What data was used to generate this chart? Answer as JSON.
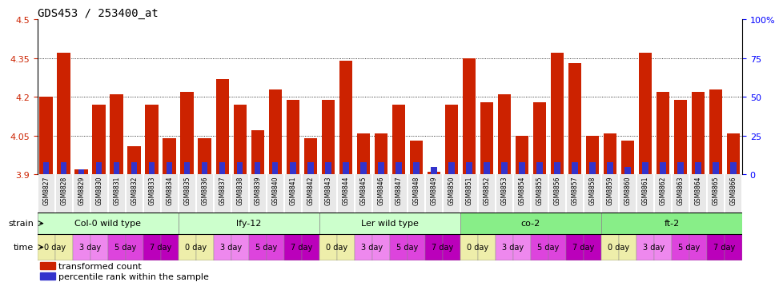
{
  "title": "GDS453 / 253400_at",
  "samples": [
    "GSM8827",
    "GSM8828",
    "GSM8829",
    "GSM8830",
    "GSM8831",
    "GSM8832",
    "GSM8833",
    "GSM8834",
    "GSM8835",
    "GSM8836",
    "GSM8837",
    "GSM8838",
    "GSM8839",
    "GSM8840",
    "GSM8841",
    "GSM8842",
    "GSM8843",
    "GSM8844",
    "GSM8845",
    "GSM8846",
    "GSM8847",
    "GSM8848",
    "GSM8849",
    "GSM8850",
    "GSM8851",
    "GSM8852",
    "GSM8853",
    "GSM8854",
    "GSM8855",
    "GSM8856",
    "GSM8857",
    "GSM8858",
    "GSM8859",
    "GSM8860",
    "GSM8861",
    "GSM8862",
    "GSM8863",
    "GSM8864",
    "GSM8865",
    "GSM8866"
  ],
  "red_values": [
    4.2,
    4.37,
    3.92,
    4.17,
    4.21,
    4.01,
    4.17,
    4.04,
    4.22,
    4.04,
    4.27,
    4.17,
    4.07,
    4.23,
    4.19,
    4.04,
    4.19,
    4.34,
    4.06,
    4.06,
    4.17,
    4.03,
    3.91,
    4.17,
    4.35,
    4.18,
    4.21,
    4.05,
    4.18,
    4.37,
    4.33,
    4.05,
    4.06,
    4.03,
    4.37,
    4.22,
    4.19,
    4.22,
    4.23,
    4.06
  ],
  "blue_percentiles": [
    8,
    8,
    3,
    8,
    8,
    8,
    8,
    8,
    8,
    8,
    8,
    8,
    8,
    8,
    8,
    8,
    8,
    8,
    8,
    8,
    8,
    8,
    5,
    8,
    8,
    8,
    8,
    8,
    8,
    8,
    8,
    8,
    8,
    5,
    8,
    8,
    8,
    8,
    8,
    8
  ],
  "ylim_left": [
    3.9,
    4.5
  ],
  "ylim_right": [
    0,
    100
  ],
  "yticks_left": [
    3.9,
    4.05,
    4.2,
    4.35,
    4.5
  ],
  "yticks_right": [
    0,
    25,
    50,
    75,
    100
  ],
  "bar_color": "#cc2200",
  "blue_color": "#3333cc",
  "strains": [
    {
      "label": "Col-0 wild type",
      "start": 0,
      "end": 8,
      "color": "#ccffcc"
    },
    {
      "label": "lfy-12",
      "start": 8,
      "end": 16,
      "color": "#ccffcc"
    },
    {
      "label": "Ler wild type",
      "start": 16,
      "end": 24,
      "color": "#ccffcc"
    },
    {
      "label": "co-2",
      "start": 24,
      "end": 32,
      "color": "#88ee88"
    },
    {
      "label": "ft-2",
      "start": 32,
      "end": 40,
      "color": "#88ee88"
    }
  ],
  "time_colors": [
    "#eeeeaa",
    "#ee88ee",
    "#dd44dd",
    "#bb00bb"
  ],
  "legend_red": "transformed count",
  "legend_blue": "percentile rank within the sample",
  "bg_color": "#ffffff"
}
